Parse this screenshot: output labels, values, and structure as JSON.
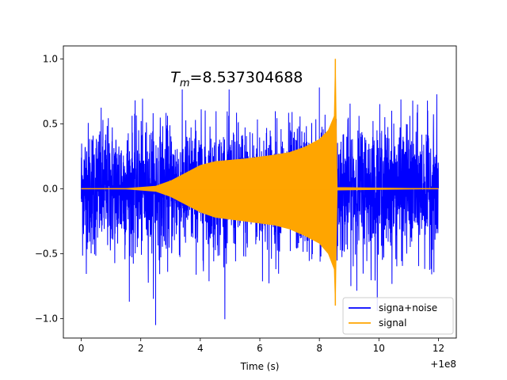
{
  "chart_data": {
    "type": "line",
    "title": "",
    "xlabel": "Time (s)",
    "ylabel": "",
    "x_offset_label": "+1e8",
    "xlim": [
      -0.6,
      12.6
    ],
    "ylim": [
      -1.15,
      1.1
    ],
    "x_ticks": [
      0,
      2,
      4,
      6,
      8,
      10,
      12
    ],
    "x_tick_labels": [
      "0",
      "2",
      "4",
      "6",
      "8",
      "10",
      "12"
    ],
    "y_ticks": [
      -1.0,
      -0.5,
      0.0,
      0.5,
      1.0
    ],
    "y_tick_labels": [
      "−1.0",
      "−0.5",
      "0.0",
      "0.5",
      "1.0"
    ],
    "grid": false,
    "legend_position": "bottom-right",
    "annotation": {
      "prefix": "T",
      "subscript": "m",
      "value": "=8.537304688",
      "x": 3.0,
      "y": 0.82
    },
    "series": [
      {
        "name": "signa+noise",
        "color": "#0000ff",
        "style": "noisy-band",
        "x_range": [
          0,
          12
        ],
        "typical_amplitude": 0.55,
        "min": -1.05,
        "max": 0.78
      },
      {
        "name": "signal",
        "color": "#ffa500",
        "style": "chirp-envelope",
        "x": [
          0,
          1.5,
          2.5,
          3.0,
          3.5,
          4.0,
          4.5,
          5.5,
          6.5,
          7.0,
          7.5,
          8.0,
          8.3,
          8.5,
          8.537,
          8.6,
          12
        ],
        "y_upper": [
          0,
          0.002,
          0.02,
          0.06,
          0.12,
          0.18,
          0.21,
          0.23,
          0.26,
          0.28,
          0.32,
          0.38,
          0.45,
          0.56,
          1.0,
          0.01,
          0
        ],
        "y_lower": [
          0,
          -0.002,
          -0.02,
          -0.06,
          -0.12,
          -0.18,
          -0.22,
          -0.25,
          -0.28,
          -0.31,
          -0.36,
          -0.42,
          -0.5,
          -0.62,
          -0.9,
          -0.01,
          0
        ]
      }
    ]
  }
}
